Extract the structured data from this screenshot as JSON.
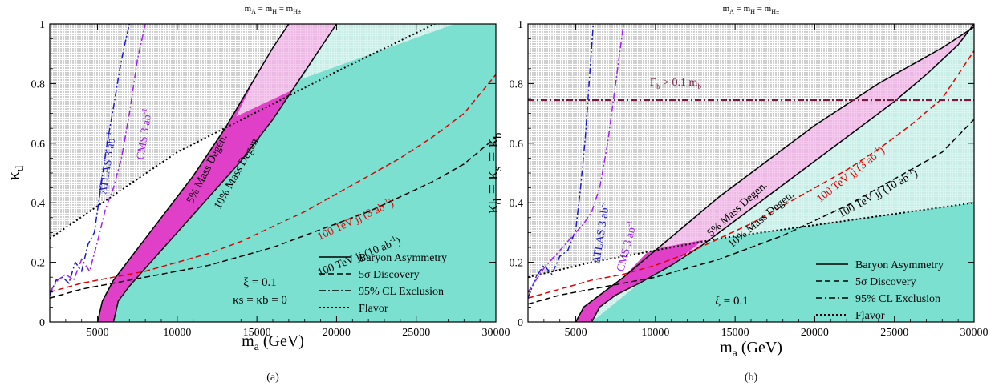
{
  "chart_data": [
    {
      "panel": "a",
      "type": "area",
      "caption": "(a)",
      "top_label": "m_A = m_H = m_H±",
      "xlabel": "m_a (GeV)",
      "ylabel": "κ_d",
      "xlim": [
        2000,
        30000
      ],
      "ylim": [
        0,
        1
      ],
      "xticks": [
        5000,
        10000,
        15000,
        20000,
        25000,
        30000
      ],
      "yticks": [
        0,
        0.2,
        0.4,
        0.6,
        0.8,
        1
      ],
      "grid": false,
      "legend_position": "bottom-right",
      "legend": [
        {
          "label": "Baryon Asymmetry",
          "style": "solid"
        },
        {
          "label": "5σ Discovery",
          "style": "dashed"
        },
        {
          "label": "95% CL Exclusion",
          "style": "dashdot"
        },
        {
          "label": "Flavor",
          "style": "dotted"
        }
      ],
      "params": [
        "ξ = 0.1",
        "κs = κb = 0"
      ],
      "annotations": {
        "atlas": "ATLAS 3 ab",
        "cms": "CMS 3 ab",
        "ee_5": "5% Mass Degen.",
        "ee_10": "10% Mass Degen.",
        "jj_100_3": "100 TeV jj (3 ab",
        "jj_100_10": "100 TeV jj (10 ab"
      },
      "regions": {
        "flavor_excluded": {
          "fill": "dotted-gray",
          "boundary_x": [
            2000,
            10000,
            20000,
            30000
          ],
          "boundary_y": [
            0.28,
            0.57,
            0.84,
            1.1
          ]
        },
        "baryon_5pct_left": {
          "x": [
            5000,
            5300,
            6000,
            7000,
            8000,
            9000,
            10000,
            11000,
            12000,
            13000,
            14000,
            15000,
            16000,
            17000
          ],
          "y": [
            0,
            0.07,
            0.14,
            0.21,
            0.28,
            0.35,
            0.42,
            0.49,
            0.57,
            0.65,
            0.74,
            0.83,
            0.92,
            1.0
          ]
        },
        "baryon_10pct_right": {
          "x": [
            6000,
            6300,
            7000,
            8000,
            9000,
            10000,
            11000,
            12000,
            13000,
            14000,
            15000,
            16000,
            17000,
            18000,
            19000,
            20000
          ],
          "y": [
            0,
            0.07,
            0.12,
            0.18,
            0.24,
            0.3,
            0.36,
            0.42,
            0.48,
            0.54,
            0.61,
            0.68,
            0.76,
            0.84,
            0.92,
            1.0
          ]
        },
        "teal_color": "#7ce0d0",
        "magenta_color": "#e040c8",
        "pink_color": "#f2b8ea"
      },
      "series": [
        {
          "name": "100 TeV jj (3 ab-1)",
          "style": "dashed",
          "color": "#e00000",
          "x": [
            2000,
            4000,
            6000,
            8000,
            10000,
            12000,
            14000,
            16000,
            18000,
            20000,
            22000,
            24000,
            26000,
            28000,
            30000
          ],
          "y": [
            0.1,
            0.13,
            0.15,
            0.17,
            0.2,
            0.23,
            0.27,
            0.32,
            0.37,
            0.43,
            0.49,
            0.55,
            0.62,
            0.7,
            0.83
          ]
        },
        {
          "name": "100 TeV jj (10 ab-1)",
          "style": "dashed",
          "color": "#000000",
          "x": [
            2000,
            4000,
            6000,
            8000,
            10000,
            12000,
            14000,
            16000,
            18000,
            20000,
            22000,
            24000,
            26000,
            28000,
            30000
          ],
          "y": [
            0.08,
            0.11,
            0.13,
            0.15,
            0.17,
            0.19,
            0.22,
            0.25,
            0.29,
            0.33,
            0.37,
            0.42,
            0.47,
            0.53,
            0.62
          ]
        },
        {
          "name": "ATLAS 3 ab-1",
          "style": "dashdot",
          "color": "#1a1acc",
          "x": [
            2000,
            2400,
            2800,
            3200,
            3600,
            4000,
            4400,
            4800,
            5200,
            5600,
            6000,
            6400,
            6700,
            7000
          ],
          "y": [
            0.09,
            0.14,
            0.15,
            0.13,
            0.2,
            0.17,
            0.26,
            0.3,
            0.45,
            0.6,
            0.72,
            0.85,
            0.93,
            1.0
          ]
        },
        {
          "name": "CMS 3 ab-1",
          "style": "dashdot",
          "color": "#a020f0",
          "x": [
            2000,
            2500,
            3000,
            3500,
            4000,
            4500,
            5000,
            5500,
            6000,
            6500,
            7000,
            7500,
            8000
          ],
          "y": [
            0.1,
            0.14,
            0.16,
            0.14,
            0.21,
            0.17,
            0.27,
            0.38,
            0.45,
            0.55,
            0.7,
            0.88,
            1.0
          ]
        }
      ]
    },
    {
      "panel": "b",
      "type": "area",
      "caption": "(b)",
      "top_label": "m_A = m_H = m_H±",
      "xlabel": "m_a (GeV)",
      "ylabel": "κ_d = κ_s = κ_b",
      "xlim": [
        2000,
        30000
      ],
      "ylim": [
        0,
        1
      ],
      "xticks": [
        5000,
        10000,
        15000,
        20000,
        25000,
        30000
      ],
      "yticks": [
        0,
        0.2,
        0.4,
        0.6,
        0.8,
        1
      ],
      "grid": false,
      "legend_position": "bottom-right",
      "legend": [
        {
          "label": "Baryon Asymmetry",
          "style": "solid"
        },
        {
          "label": "5σ Discovery",
          "style": "dashed"
        },
        {
          "label": "95% CL Exclusion",
          "style": "dashdot"
        },
        {
          "label": "Flavor",
          "style": "dotted"
        }
      ],
      "params": [
        "ξ = 0.1"
      ],
      "annotations": {
        "atlas": "ATLAS 3 ab",
        "cms": "CMS 3 ab",
        "ee_5": "5% Mass Degen.",
        "ee_10": "10% Mass Degen.",
        "jj_100_3": "100 TeV jj (3 ab",
        "jj_100_10": "100 TeV jj (10 ab",
        "width": "Γb > 0.1 mb"
      },
      "width_line_y": 0.745,
      "regions": {
        "flavor_boundary_x": [
          2000,
          6000,
          10000,
          14000,
          18000,
          22000,
          26000,
          30000
        ],
        "flavor_boundary_y": [
          0.15,
          0.2,
          0.24,
          0.28,
          0.31,
          0.34,
          0.37,
          0.4
        ],
        "baryon_5pct_left": {
          "x": [
            5000,
            5500,
            6500,
            8000,
            10000,
            12000,
            14000,
            16000,
            18000,
            20000,
            22000,
            24000,
            26000,
            28000,
            30000
          ],
          "y": [
            0,
            0.05,
            0.09,
            0.15,
            0.24,
            0.33,
            0.42,
            0.5,
            0.58,
            0.66,
            0.73,
            0.8,
            0.86,
            0.92,
            0.99
          ]
        },
        "baryon_10pct_right": {
          "x": [
            6000,
            6500,
            7500,
            9000,
            11000,
            13000,
            15000,
            17000,
            19000,
            21000,
            23000,
            25000,
            27000,
            29000,
            30000
          ],
          "y": [
            0,
            0.05,
            0.09,
            0.13,
            0.19,
            0.26,
            0.34,
            0.42,
            0.5,
            0.58,
            0.66,
            0.74,
            0.83,
            0.93,
            1.0
          ]
        }
      },
      "series": [
        {
          "name": "100 TeV jj (3 ab-1)",
          "style": "dashed",
          "color": "#e00000",
          "x": [
            2000,
            4000,
            6000,
            8000,
            10000,
            12000,
            14000,
            16000,
            18000,
            20000,
            22000,
            24000,
            26000,
            28000,
            30000
          ],
          "y": [
            0.08,
            0.11,
            0.14,
            0.16,
            0.19,
            0.23,
            0.28,
            0.33,
            0.39,
            0.45,
            0.51,
            0.58,
            0.66,
            0.75,
            0.91
          ]
        },
        {
          "name": "100 TeV jj (10 ab-1)",
          "style": "dashed",
          "color": "#000000",
          "x": [
            2000,
            4000,
            6000,
            8000,
            10000,
            12000,
            14000,
            16000,
            18000,
            20000,
            22000,
            24000,
            26000,
            28000,
            30000
          ],
          "y": [
            0.06,
            0.09,
            0.11,
            0.13,
            0.15,
            0.18,
            0.21,
            0.25,
            0.29,
            0.34,
            0.39,
            0.45,
            0.51,
            0.57,
            0.68
          ]
        },
        {
          "name": "ATLAS 3 ab-1",
          "style": "dashdot",
          "color": "#1a1acc",
          "x": [
            2000,
            2500,
            3000,
            3500,
            4000,
            4500,
            5000,
            5300,
            5600,
            5900,
            6100
          ],
          "y": [
            0.08,
            0.15,
            0.19,
            0.16,
            0.22,
            0.24,
            0.31,
            0.45,
            0.62,
            0.85,
            1.0
          ]
        },
        {
          "name": "CMS 3 ab-1",
          "style": "dashdot",
          "color": "#a020f0",
          "x": [
            2000,
            3000,
            4000,
            4500,
            5000,
            5500,
            6000,
            6500,
            7000,
            7500,
            8000
          ],
          "y": [
            0.1,
            0.18,
            0.24,
            0.27,
            0.3,
            0.33,
            0.37,
            0.45,
            0.6,
            0.8,
            1.0
          ]
        },
        {
          "name": "Γb > 0.1 mb",
          "style": "dashdot",
          "color": "#7a1840",
          "x": [
            2000,
            30000
          ],
          "y": [
            0.745,
            0.745
          ]
        }
      ]
    }
  ]
}
